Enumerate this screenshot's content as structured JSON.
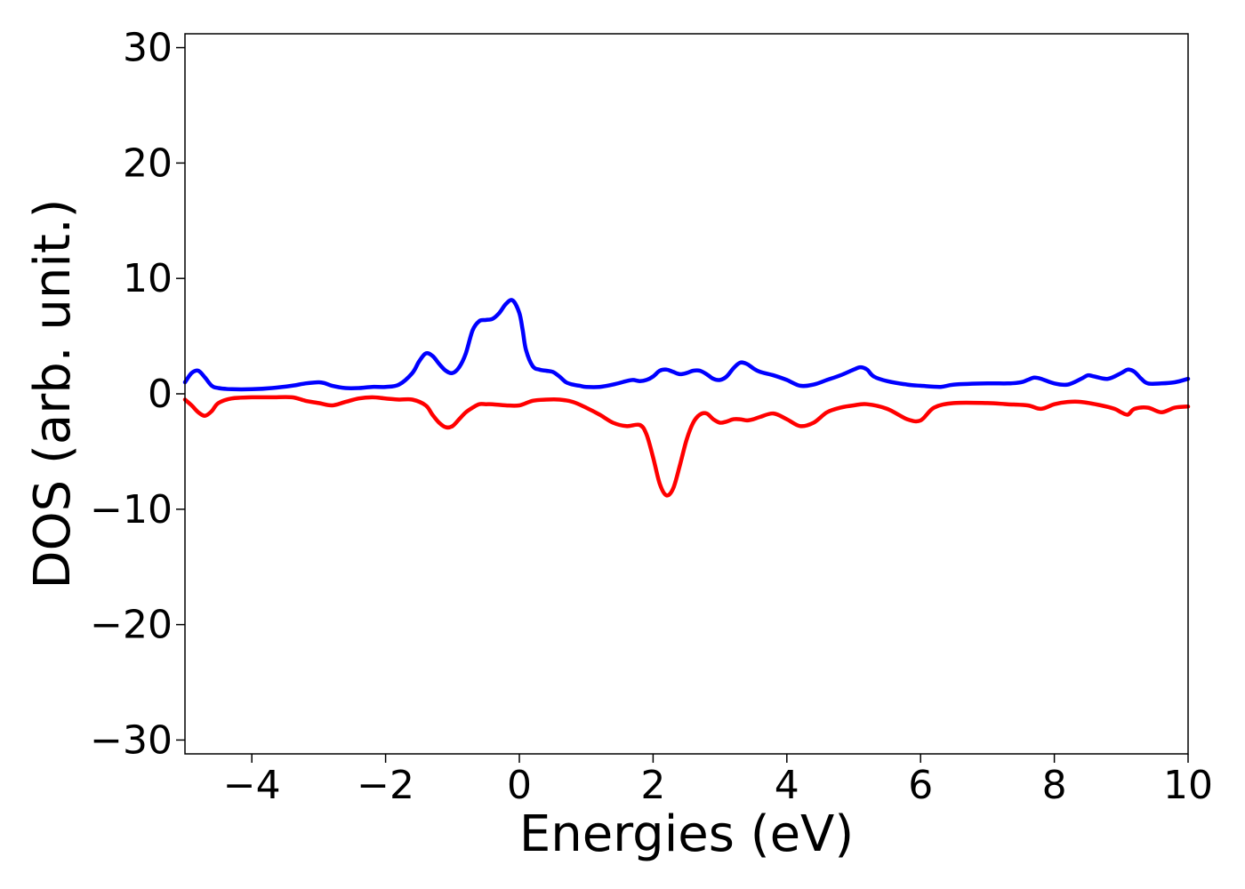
{
  "chart_data": {
    "type": "line",
    "title": "",
    "xlabel": "Energies (eV)",
    "ylabel": "DOS (arb. unit.)",
    "xlim": [
      -5,
      10
    ],
    "ylim": [
      -31.2,
      31.2
    ],
    "xticks": [
      -4,
      -2,
      0,
      2,
      4,
      6,
      8,
      10
    ],
    "yticks": [
      -30,
      -20,
      -10,
      0,
      10,
      20,
      30
    ],
    "xtick_labels": [
      "−4",
      "−2",
      "0",
      "2",
      "4",
      "6",
      "8",
      "10"
    ],
    "ytick_labels": [
      "−30",
      "−20",
      "−10",
      "0",
      "10",
      "20",
      "30"
    ],
    "grid": false,
    "legend": "none",
    "series": [
      {
        "color": "#0000ff",
        "x": [
          -5.0,
          -4.9,
          -4.8,
          -4.7,
          -4.6,
          -4.5,
          -4.3,
          -4.0,
          -3.7,
          -3.4,
          -3.2,
          -3.0,
          -2.9,
          -2.8,
          -2.6,
          -2.4,
          -2.2,
          -2.0,
          -1.8,
          -1.6,
          -1.5,
          -1.4,
          -1.3,
          -1.2,
          -1.1,
          -1.0,
          -0.9,
          -0.8,
          -0.7,
          -0.6,
          -0.5,
          -0.4,
          -0.3,
          -0.2,
          -0.1,
          0.0,
          0.05,
          0.1,
          0.2,
          0.3,
          0.4,
          0.5,
          0.6,
          0.7,
          0.8,
          0.9,
          1.0,
          1.2,
          1.4,
          1.6,
          1.7,
          1.8,
          1.9,
          2.0,
          2.1,
          2.2,
          2.3,
          2.4,
          2.5,
          2.6,
          2.7,
          2.8,
          2.9,
          3.0,
          3.1,
          3.2,
          3.3,
          3.4,
          3.5,
          3.6,
          3.8,
          4.0,
          4.2,
          4.4,
          4.6,
          4.8,
          5.0,
          5.1,
          5.2,
          5.3,
          5.5,
          5.8,
          6.0,
          6.3,
          6.5,
          7.0,
          7.3,
          7.5,
          7.6,
          7.7,
          7.8,
          8.0,
          8.2,
          8.4,
          8.5,
          8.6,
          8.8,
          9.0,
          9.1,
          9.2,
          9.3,
          9.4,
          9.6,
          9.8,
          10.0
        ],
        "y": [
          1.0,
          1.8,
          2.0,
          1.4,
          0.7,
          0.5,
          0.4,
          0.4,
          0.5,
          0.7,
          0.9,
          1.0,
          0.9,
          0.7,
          0.5,
          0.5,
          0.6,
          0.6,
          0.8,
          1.8,
          2.8,
          3.5,
          3.3,
          2.6,
          2.0,
          1.8,
          2.3,
          3.5,
          5.5,
          6.3,
          6.4,
          6.5,
          7.0,
          7.8,
          8.1,
          7.0,
          5.5,
          3.8,
          2.4,
          2.1,
          2.0,
          1.9,
          1.5,
          1.0,
          0.8,
          0.7,
          0.6,
          0.6,
          0.8,
          1.1,
          1.2,
          1.1,
          1.2,
          1.5,
          2.0,
          2.1,
          1.9,
          1.7,
          1.8,
          2.0,
          2.0,
          1.7,
          1.3,
          1.2,
          1.5,
          2.2,
          2.7,
          2.6,
          2.2,
          1.9,
          1.6,
          1.2,
          0.7,
          0.8,
          1.2,
          1.6,
          2.1,
          2.3,
          2.1,
          1.5,
          1.1,
          0.8,
          0.7,
          0.6,
          0.8,
          0.9,
          0.9,
          1.0,
          1.2,
          1.4,
          1.3,
          0.9,
          0.8,
          1.3,
          1.6,
          1.5,
          1.3,
          1.8,
          2.1,
          1.9,
          1.3,
          0.9,
          0.9,
          1.0,
          1.3
        ]
      },
      {
        "color": "#ff0000",
        "x": [
          -5.0,
          -4.9,
          -4.8,
          -4.7,
          -4.6,
          -4.5,
          -4.3,
          -4.0,
          -3.7,
          -3.4,
          -3.2,
          -3.0,
          -2.8,
          -2.6,
          -2.4,
          -2.2,
          -2.0,
          -1.8,
          -1.6,
          -1.4,
          -1.3,
          -1.2,
          -1.1,
          -1.0,
          -0.9,
          -0.8,
          -0.7,
          -0.6,
          -0.5,
          -0.4,
          -0.2,
          0.0,
          0.2,
          0.4,
          0.6,
          0.8,
          1.0,
          1.2,
          1.4,
          1.6,
          1.8,
          1.9,
          2.0,
          2.1,
          2.2,
          2.3,
          2.4,
          2.5,
          2.6,
          2.7,
          2.8,
          2.9,
          3.0,
          3.1,
          3.2,
          3.3,
          3.4,
          3.5,
          3.6,
          3.8,
          4.0,
          4.2,
          4.4,
          4.6,
          4.8,
          5.0,
          5.2,
          5.5,
          5.8,
          6.0,
          6.2,
          6.5,
          7.0,
          7.3,
          7.6,
          7.8,
          8.0,
          8.2,
          8.4,
          8.7,
          8.9,
          9.0,
          9.1,
          9.2,
          9.4,
          9.6,
          9.8,
          10.0
        ],
        "y": [
          -0.5,
          -1.0,
          -1.6,
          -1.9,
          -1.5,
          -0.8,
          -0.4,
          -0.3,
          -0.3,
          -0.3,
          -0.6,
          -0.8,
          -1.0,
          -0.7,
          -0.4,
          -0.3,
          -0.4,
          -0.5,
          -0.5,
          -1.0,
          -1.8,
          -2.5,
          -2.9,
          -2.8,
          -2.2,
          -1.6,
          -1.2,
          -0.9,
          -0.9,
          -0.9,
          -1.0,
          -1.0,
          -0.6,
          -0.5,
          -0.5,
          -0.7,
          -1.2,
          -1.8,
          -2.5,
          -2.8,
          -2.7,
          -3.5,
          -5.5,
          -7.8,
          -8.8,
          -8.2,
          -6.2,
          -4.0,
          -2.5,
          -1.8,
          -1.7,
          -2.2,
          -2.5,
          -2.4,
          -2.2,
          -2.2,
          -2.3,
          -2.2,
          -2.0,
          -1.7,
          -2.2,
          -2.8,
          -2.5,
          -1.6,
          -1.2,
          -1.0,
          -0.9,
          -1.3,
          -2.2,
          -2.3,
          -1.2,
          -0.8,
          -0.8,
          -0.9,
          -1.0,
          -1.3,
          -0.9,
          -0.7,
          -0.7,
          -1.0,
          -1.3,
          -1.6,
          -1.8,
          -1.3,
          -1.2,
          -1.6,
          -1.2,
          -1.1
        ]
      }
    ]
  }
}
